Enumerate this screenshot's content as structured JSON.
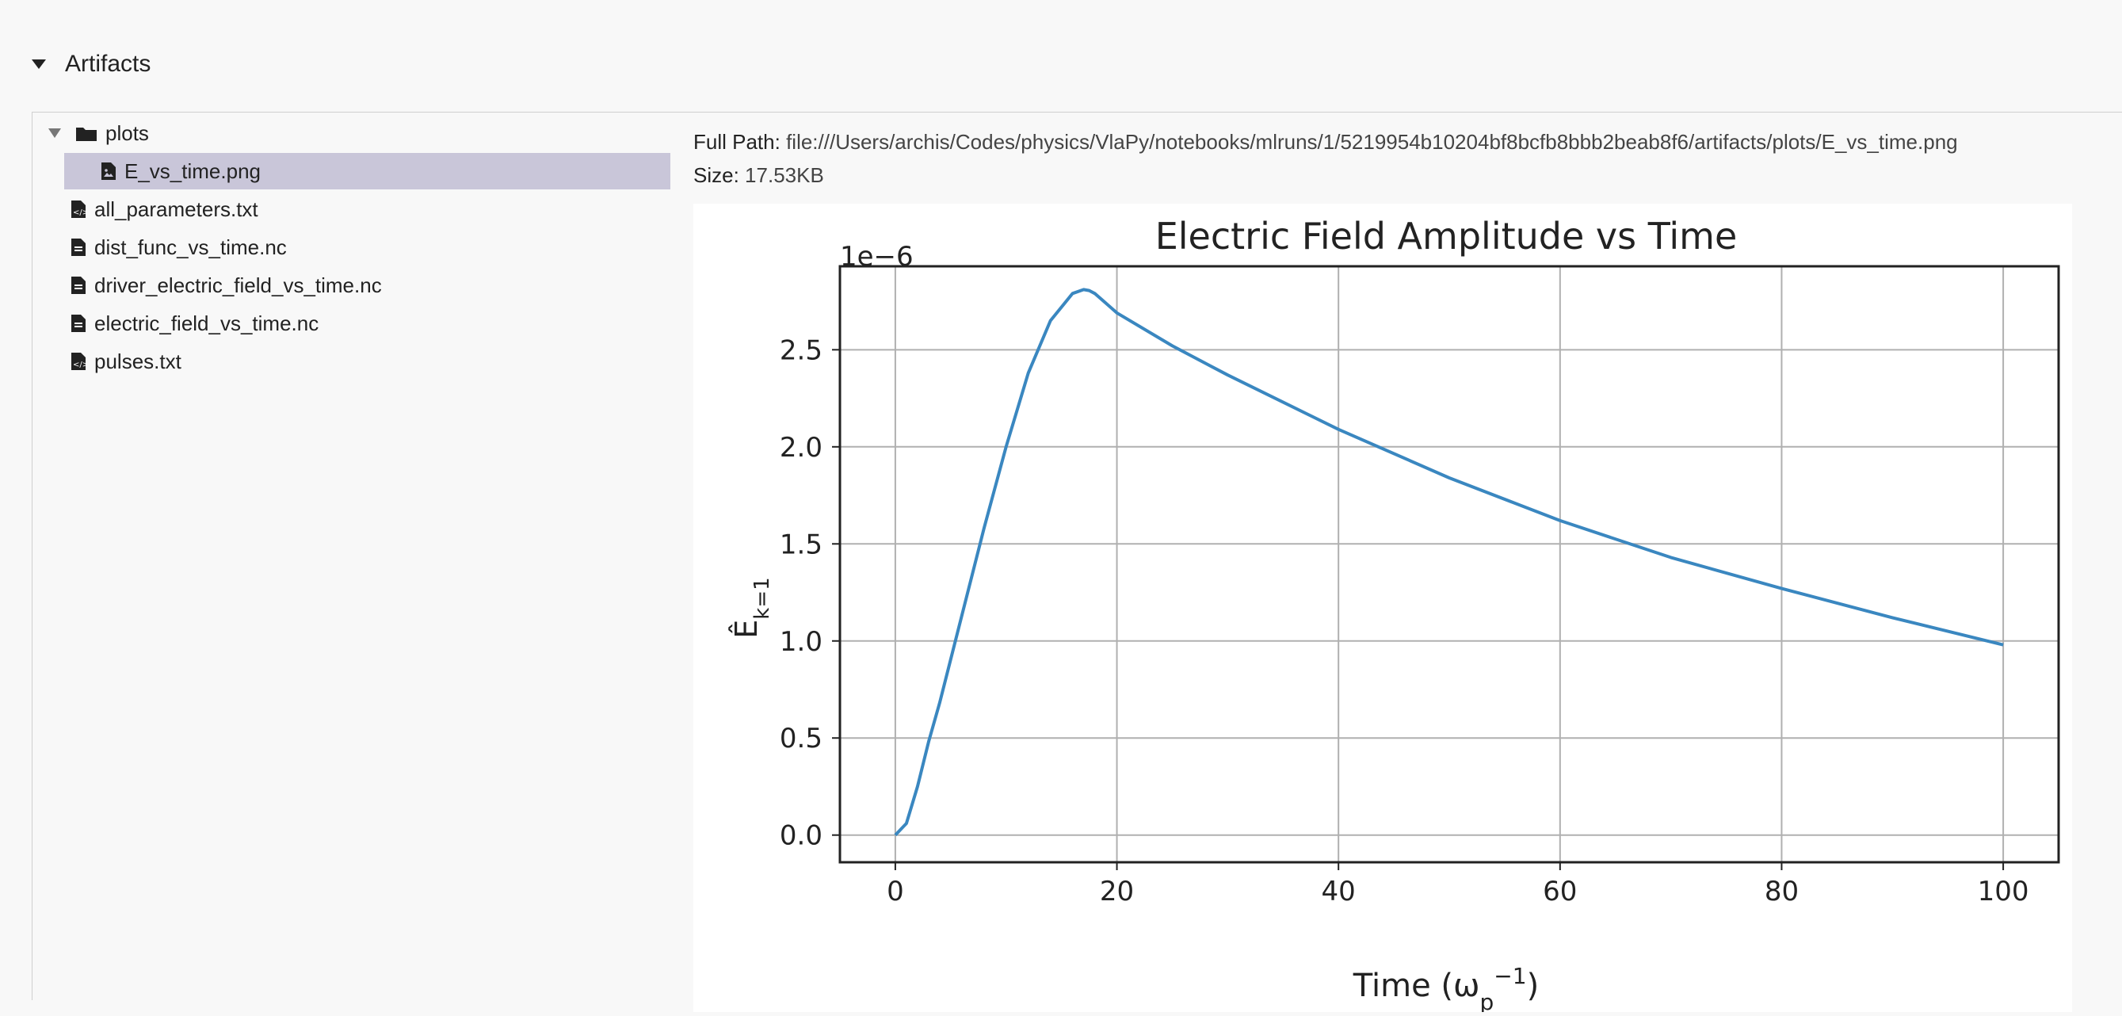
{
  "section": {
    "title": "Artifacts"
  },
  "tree": {
    "folder": {
      "label": "plots",
      "expanded": true
    },
    "items": [
      {
        "label": "E_vs_time.png",
        "icon": "image-file-icon",
        "selected": true,
        "nested": true
      },
      {
        "label": "all_parameters.txt",
        "icon": "code-file-icon"
      },
      {
        "label": "dist_func_vs_time.nc",
        "icon": "file-icon"
      },
      {
        "label": "driver_electric_field_vs_time.nc",
        "icon": "file-icon"
      },
      {
        "label": "electric_field_vs_time.nc",
        "icon": "file-icon"
      },
      {
        "label": "pulses.txt",
        "icon": "code-file-icon"
      }
    ]
  },
  "preview": {
    "full_path_label": "Full Path:",
    "full_path": "file:///Users/archis/Codes/physics/VlaPy/notebooks/mlruns/1/5219954b10204bf8bcfb8bbb2beab8f6/artifacts/plots/E_vs_time.png",
    "size_label": "Size:",
    "size": "17.53KB"
  },
  "colors": {
    "selected_row": "#c9c6d9",
    "line": "#3a87c0"
  },
  "chart_data": {
    "type": "line",
    "title": "Electric Field Amplitude vs Time",
    "xlabel": "Time (ω_p^-1)",
    "ylabel": "Ê_k=1",
    "y_multiplier": "1e−6",
    "xlim": [
      -5,
      105
    ],
    "ylim": [
      -0.14,
      2.93
    ],
    "x_ticks": [
      "0",
      "20",
      "40",
      "60",
      "80",
      "100"
    ],
    "y_ticks": [
      "0.0",
      "0.5",
      "1.0",
      "1.5",
      "2.0",
      "2.5"
    ],
    "grid": true,
    "series": [
      {
        "x": [
          0,
          1,
          2,
          3,
          4,
          6,
          8,
          10,
          12,
          14,
          16,
          17,
          17.5,
          18,
          19,
          20,
          25,
          30,
          40,
          50,
          60,
          70,
          80,
          90,
          100
        ],
        "y": [
          0,
          0.06,
          0.25,
          0.48,
          0.68,
          1.13,
          1.58,
          2.0,
          2.38,
          2.65,
          2.79,
          2.81,
          2.805,
          2.79,
          2.74,
          2.69,
          2.52,
          2.37,
          2.09,
          1.84,
          1.62,
          1.43,
          1.27,
          1.12,
          0.98
        ]
      }
    ]
  }
}
